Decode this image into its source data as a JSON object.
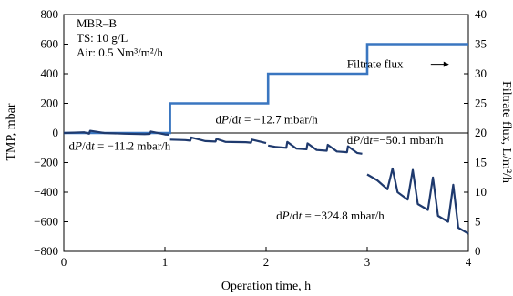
{
  "chart_data": {
    "type": "line",
    "title": "",
    "xlabel": "Operation time, h",
    "ylabel_left": "TMP, mbar",
    "ylabel_right": "Filtrate flux, L/m²/h",
    "xlim": [
      0,
      4
    ],
    "ylim_left": [
      -800,
      800
    ],
    "ylim_right": [
      0,
      40
    ],
    "x_ticks": [
      0,
      1,
      2,
      3,
      4
    ],
    "y_ticks_left": [
      800,
      600,
      400,
      200,
      0,
      -200,
      -400,
      -600,
      -800
    ],
    "y_ticks_right": [
      40,
      35,
      30,
      25,
      20,
      15,
      10,
      5,
      0
    ],
    "grid": false,
    "info_box": [
      "MBR–B",
      "TS: 10 g/L",
      "Air: 0.5 Nm³/m²/h"
    ],
    "series": [
      {
        "name": "Filtrate flux",
        "axis": "right",
        "color": "#3a76c0",
        "x": [
          0,
          1.05,
          1.05,
          2.02,
          2.02,
          3.0,
          3.0,
          4.0
        ],
        "y": [
          20,
          20,
          25,
          25,
          30,
          30,
          35,
          35
        ]
      },
      {
        "axis": "left",
        "color": "#1f3a6e",
        "segments": [
          {
            "x": [
              0.0,
              0.2,
              0.25,
              0.26,
              0.4,
              0.6,
              0.8,
              0.85,
              0.86,
              1.0,
              1.04
            ],
            "y": [
              0,
              5,
              -5,
              15,
              0,
              -5,
              -8,
              -6,
              10,
              -10,
              -12
            ]
          },
          {
            "x": [
              1.05,
              1.2,
              1.25,
              1.26,
              1.4,
              1.5,
              1.51,
              1.6,
              1.8,
              1.85,
              1.86,
              2.0
            ],
            "y": [
              -45,
              -48,
              -52,
              -30,
              -55,
              -58,
              -40,
              -60,
              -62,
              -65,
              -45,
              -68
            ]
          },
          {
            "x": [
              2.02,
              2.1,
              2.2,
              2.21,
              2.3,
              2.4,
              2.41,
              2.5,
              2.6,
              2.61,
              2.7,
              2.8,
              2.81,
              2.9,
              2.95
            ],
            "y": [
              -85,
              -95,
              -100,
              -60,
              -105,
              -110,
              -70,
              -115,
              -120,
              -80,
              -125,
              -130,
              -90,
              -135,
              -140
            ]
          },
          {
            "x": [
              3.0,
              3.1,
              3.2,
              3.25,
              3.3,
              3.4,
              3.45,
              3.5,
              3.6,
              3.65,
              3.7,
              3.8,
              3.85,
              3.9,
              4.0
            ],
            "y": [
              -280,
              -320,
              -380,
              -240,
              -400,
              -450,
              -250,
              -480,
              -520,
              -300,
              -560,
              -600,
              -350,
              -640,
              -680
            ]
          }
        ]
      }
    ],
    "annotations": [
      {
        "text": "Filtrate flux",
        "x": 2.8,
        "y": 31.6,
        "axis": "right",
        "arrow": true
      },
      {
        "text": "dP/dt = −12.7 mbar/h",
        "x": 1.5,
        "y": 90,
        "axis": "left"
      },
      {
        "text": "dP/dt = −11.2 mbar/h",
        "x": 0.05,
        "y": -90,
        "axis": "left"
      },
      {
        "text": "dP/dt=−50.1 mbar/h",
        "x": 2.8,
        "y": -50,
        "axis": "left"
      },
      {
        "text": "dP/dt = −324.8 mbar/h",
        "x": 2.1,
        "y": -560,
        "axis": "left"
      }
    ]
  }
}
